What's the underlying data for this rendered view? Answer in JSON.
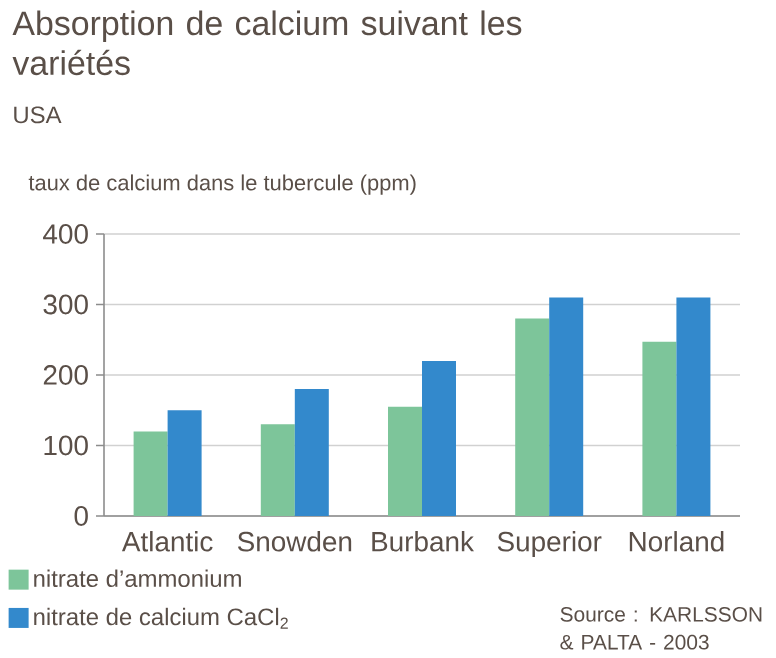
{
  "chart_data": {
    "type": "bar",
    "title": "Absorption de calcium suivant les variétés",
    "subtitle": "USA",
    "ylabel": "taux de calcium dans le tubercule (ppm)",
    "categories": [
      "Atlantic",
      "Snowden",
      "Burbank",
      "Superior",
      "Norland"
    ],
    "series": [
      {
        "name": "nitrate d’ammonium",
        "color": "#7dc59a",
        "values": [
          120,
          130,
          155,
          280,
          247
        ]
      },
      {
        "name": "nitrate de calcium CaCl$_{2}$",
        "color": "#3389cc",
        "values": [
          150,
          180,
          220,
          310,
          310
        ]
      }
    ],
    "ylim": [
      0,
      400
    ],
    "yticks": [
      0,
      100,
      200,
      300,
      400
    ],
    "grid": "y",
    "legend": "bottom left",
    "annotations": [
      "Source : KARLSSON & PALTA - 2003"
    ]
  }
}
